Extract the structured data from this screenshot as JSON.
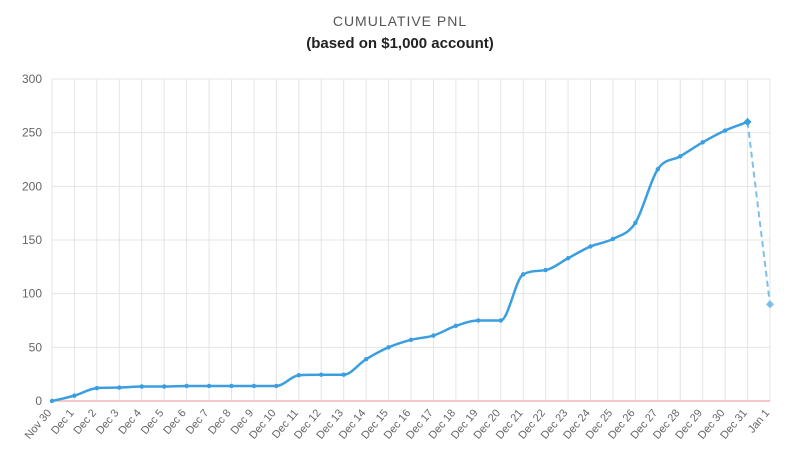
{
  "chart_data": {
    "type": "line",
    "title": "CUMULATIVE PNL",
    "subtitle": "(based on $1,000 account)",
    "categories": [
      "Nov 30",
      "Dec 1",
      "Dec 2",
      "Dec 3",
      "Dec 4",
      "Dec 5",
      "Dec 6",
      "Dec 7",
      "Dec 8",
      "Dec 9",
      "Dec 10",
      "Dec 11",
      "Dec 12",
      "Dec 13",
      "Dec 14",
      "Dec 15",
      "Dec 16",
      "Dec 17",
      "Dec 18",
      "Dec 19",
      "Dec 20",
      "Dec 21",
      "Dec 22",
      "Dec 23",
      "Dec 24",
      "Dec 25",
      "Dec 26",
      "Dec 27",
      "Dec 28",
      "Dec 29",
      "Dec 30",
      "Dec 31",
      "Jan 1"
    ],
    "values": [
      0,
      5,
      12,
      12.5,
      13.5,
      13.5,
      14,
      14,
      14,
      14,
      14,
      24,
      24.5,
      24.5,
      39,
      50,
      57,
      61,
      70,
      75,
      75,
      118,
      122,
      133,
      144,
      151,
      166,
      216,
      228,
      241,
      252,
      260,
      90
    ],
    "projected_from_index": 31,
    "ylim": [
      0,
      300
    ],
    "yticks": [
      0,
      50,
      100,
      150,
      200,
      250,
      300
    ],
    "grid": true,
    "colors": {
      "line": "#3a9ee0",
      "projection": "#7cc0ea",
      "baseline": "#f2a6a6",
      "grid": "#e4e4e4"
    }
  }
}
